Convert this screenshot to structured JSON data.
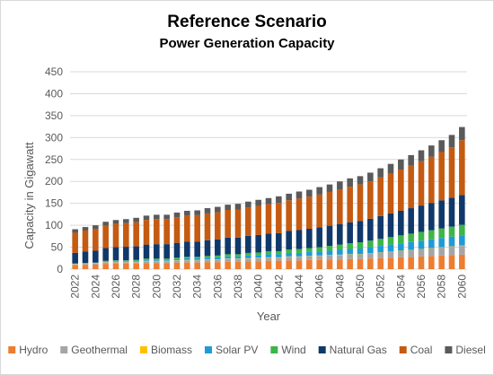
{
  "chart_data": {
    "type": "bar",
    "stacked": true,
    "title": "Reference Scenario",
    "subtitle": "Power Generation Capacity",
    "xlabel": "Year",
    "ylabel": "Capacity in Gigawatt",
    "ylim": [
      0,
      450
    ],
    "yticks": [
      0,
      50,
      100,
      150,
      200,
      250,
      300,
      350,
      400,
      450
    ],
    "grid": true,
    "legend_position": "bottom",
    "categories": [
      "2022",
      "2023",
      "2024",
      "2025",
      "2026",
      "2027",
      "2028",
      "2029",
      "2030",
      "2031",
      "2032",
      "2033",
      "2034",
      "2035",
      "2036",
      "2037",
      "2038",
      "2039",
      "2040",
      "2041",
      "2042",
      "2043",
      "2044",
      "2045",
      "2046",
      "2047",
      "2048",
      "2049",
      "2050",
      "2051",
      "2052",
      "2053",
      "2054",
      "2055",
      "2056",
      "2057",
      "2058",
      "2059",
      "2060"
    ],
    "xtick_labels": [
      "2022",
      "",
      "2024",
      "",
      "2026",
      "",
      "2028",
      "",
      "2030",
      "",
      "2032",
      "",
      "2034",
      "",
      "2036",
      "",
      "2038",
      "",
      "2040",
      "",
      "2042",
      "",
      "2044",
      "",
      "2046",
      "",
      "2048",
      "",
      "2050",
      "",
      "2052",
      "",
      "2054",
      "",
      "2056",
      "",
      "2058",
      "",
      "2060"
    ],
    "series": [
      {
        "name": "Hydro",
        "color": "#ED7D31",
        "values": [
          9,
          10,
          11,
          12,
          13,
          13,
          13,
          14,
          14,
          14,
          15,
          15,
          15,
          16,
          16,
          17,
          17,
          18,
          18,
          19,
          19,
          20,
          20,
          21,
          21,
          22,
          22,
          23,
          23,
          24,
          25,
          26,
          27,
          28,
          29,
          30,
          31,
          32,
          33
        ]
      },
      {
        "name": "Geothermal",
        "color": "#A5A5A5",
        "values": [
          2,
          2,
          2,
          3,
          3,
          3,
          3,
          4,
          4,
          4,
          4,
          5,
          5,
          5,
          5,
          6,
          6,
          6,
          7,
          7,
          7,
          8,
          8,
          8,
          9,
          9,
          10,
          10,
          10,
          11,
          12,
          13,
          14,
          15,
          16,
          17,
          18,
          19,
          20
        ]
      },
      {
        "name": "Biomass",
        "color": "#FFC000",
        "values": [
          1,
          1,
          1,
          1,
          1,
          1,
          1,
          1,
          1,
          1,
          1,
          1,
          1,
          1,
          1,
          1,
          1,
          1,
          1,
          1,
          1,
          1,
          1,
          1,
          1,
          1,
          1,
          1,
          1,
          1,
          1,
          1,
          1,
          1,
          1,
          1,
          1,
          1,
          1
        ]
      },
      {
        "name": "Solar PV",
        "color": "#1E9BD7",
        "values": [
          1,
          1,
          1,
          2,
          2,
          2,
          2,
          3,
          3,
          3,
          3,
          4,
          4,
          4,
          5,
          5,
          5,
          6,
          6,
          7,
          7,
          8,
          8,
          9,
          9,
          10,
          11,
          12,
          13,
          14,
          15,
          16,
          17,
          18,
          19,
          20,
          21,
          22,
          23
        ]
      },
      {
        "name": "Wind",
        "color": "#3DB548",
        "values": [
          0,
          0,
          0,
          1,
          1,
          1,
          2,
          2,
          2,
          2,
          3,
          3,
          3,
          4,
          4,
          5,
          5,
          6,
          6,
          7,
          7,
          8,
          9,
          9,
          10,
          11,
          12,
          13,
          14,
          15,
          16,
          17,
          18,
          19,
          20,
          21,
          22,
          23,
          24
        ]
      },
      {
        "name": "Natural Gas",
        "color": "#10386B",
        "values": [
          24,
          26,
          27,
          29,
          30,
          31,
          31,
          32,
          33,
          33,
          34,
          35,
          35,
          36,
          37,
          38,
          38,
          39,
          40,
          40,
          41,
          42,
          43,
          44,
          45,
          46,
          47,
          48,
          49,
          50,
          52,
          54,
          56,
          58,
          60,
          62,
          64,
          66,
          68
        ]
      },
      {
        "name": "Coal",
        "color": "#C55A11",
        "values": [
          46,
          48,
          50,
          51,
          53,
          54,
          55,
          56,
          57,
          57,
          58,
          59,
          60,
          61,
          62,
          63,
          64,
          65,
          66,
          67,
          69,
          70,
          72,
          73,
          75,
          77,
          79,
          81,
          83,
          85,
          88,
          91,
          94,
          97,
          101,
          105,
          110,
          115,
          125
        ]
      },
      {
        "name": "Diesel",
        "color": "#5A5A5A",
        "values": [
          8,
          8,
          8,
          9,
          9,
          9,
          10,
          10,
          10,
          10,
          11,
          11,
          11,
          12,
          12,
          12,
          13,
          13,
          14,
          14,
          15,
          15,
          16,
          16,
          17,
          17,
          18,
          19,
          19,
          20,
          21,
          22,
          23,
          24,
          25,
          26,
          27,
          28,
          30
        ]
      }
    ]
  }
}
